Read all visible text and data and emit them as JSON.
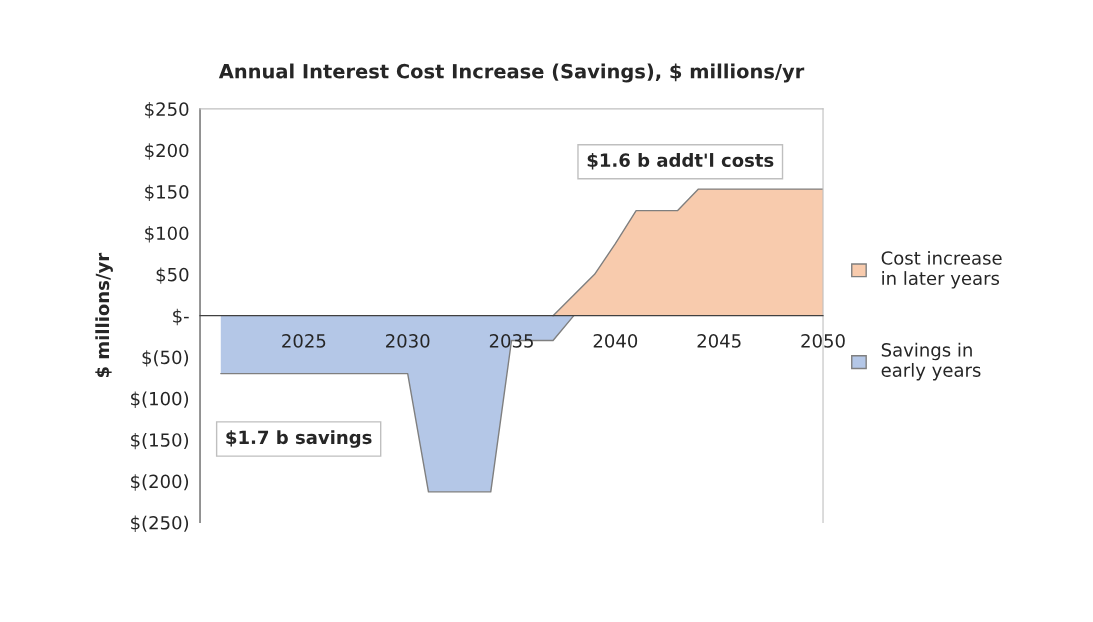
{
  "chart_data": {
    "type": "area",
    "title": "Annual Interest Cost Increase (Savings), $ millions/yr",
    "ylabel": "$ millions/yr",
    "series": [
      {
        "name": "Cost increase\nin later years",
        "color": "#f8cbad",
        "x": [
          2037,
          2038,
          2039,
          2040,
          2041,
          2043,
          2044,
          2050
        ],
        "values": [
          0,
          25,
          50,
          87,
          127,
          127,
          153,
          153
        ]
      },
      {
        "name": "Savings in\nearly years",
        "color": "#b4c7e7",
        "x": [
          2021,
          2030,
          2031,
          2034,
          2035,
          2037,
          2038
        ],
        "values": [
          -70,
          -70,
          -213,
          -213,
          -30,
          -30,
          0
        ]
      }
    ],
    "xlim": [
      2020,
      2050
    ],
    "xticks": [
      2025,
      2030,
      2035,
      2040,
      2045,
      2050
    ],
    "ylim": [
      -250,
      250
    ],
    "yticks": [
      {
        "value": 250,
        "label": "$250"
      },
      {
        "value": 200,
        "label": "$200"
      },
      {
        "value": 150,
        "label": "$150"
      },
      {
        "value": 100,
        "label": "$100"
      },
      {
        "value": 50,
        "label": "$50"
      },
      {
        "value": 0,
        "label": "$-"
      },
      {
        "value": -50,
        "label": "$(50)"
      },
      {
        "value": -100,
        "label": "$(100)"
      },
      {
        "value": -150,
        "label": "$(150)"
      },
      {
        "value": -200,
        "label": "$(200)"
      },
      {
        "value": -250,
        "label": "$(250)"
      }
    ],
    "annotations": [
      "$1.6 b addt'l costs",
      "$1.7 b savings"
    ],
    "grid": false,
    "legend": "right"
  }
}
